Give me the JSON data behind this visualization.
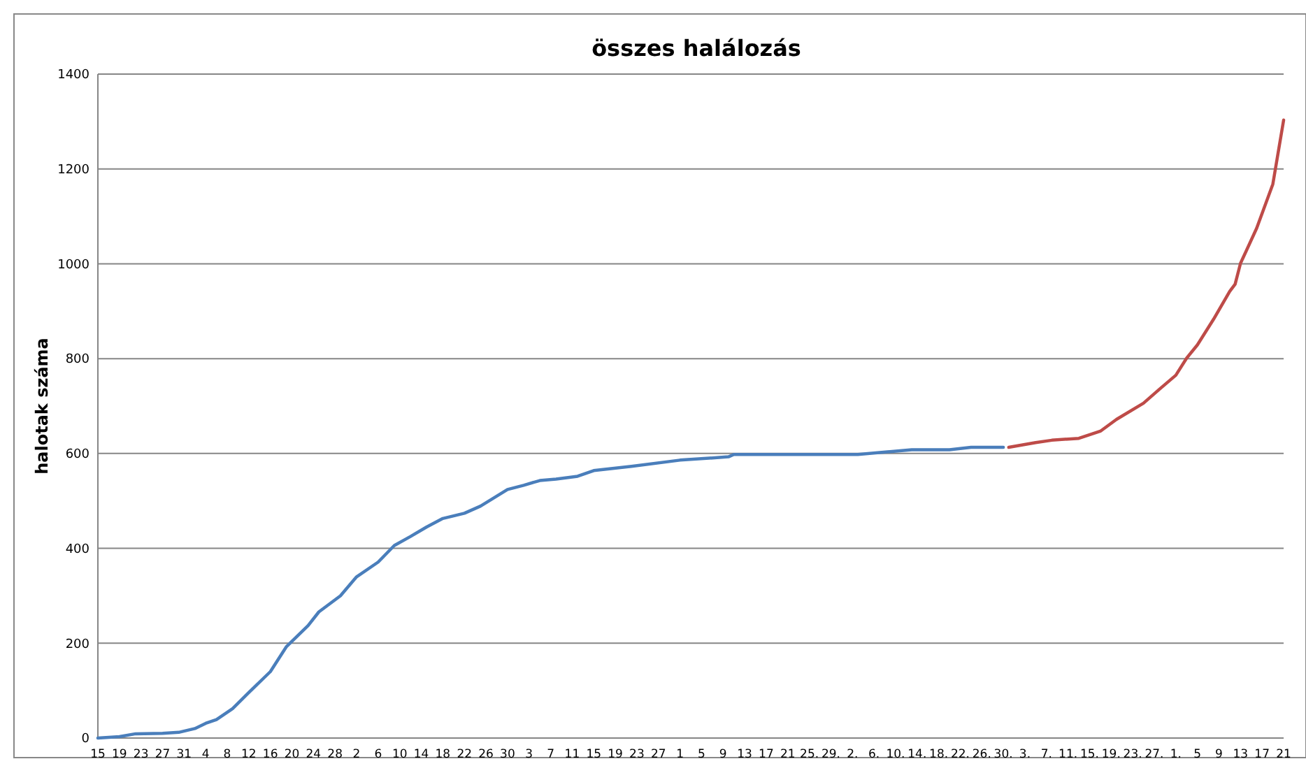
{
  "chart_data": {
    "type": "line",
    "title": "összes halálozás",
    "ylabel": "halotak száma",
    "ylim": [
      0,
      1400
    ],
    "yticks": [
      0,
      200,
      400,
      600,
      800,
      1000,
      1200,
      1400
    ],
    "grid": "y",
    "marker": "none",
    "line_style": "solid",
    "xlim": [
      "--03-15",
      "--10-21"
    ],
    "xticks": [
      {
        "value": "--03-15",
        "label": "15"
      },
      {
        "value": "--03-19",
        "label": "19"
      },
      {
        "value": "--03-23",
        "label": "23"
      },
      {
        "value": "--03-27",
        "label": "27"
      },
      {
        "value": "--03-31",
        "label": "31"
      },
      {
        "value": "--04-04",
        "label": "4"
      },
      {
        "value": "--04-08",
        "label": "8"
      },
      {
        "value": "--04-12",
        "label": "12"
      },
      {
        "value": "--04-16",
        "label": "16"
      },
      {
        "value": "--04-20",
        "label": "20"
      },
      {
        "value": "--04-24",
        "label": "24"
      },
      {
        "value": "--04-28",
        "label": "28"
      },
      {
        "value": "--05-02",
        "label": "2"
      },
      {
        "value": "--05-06",
        "label": "6"
      },
      {
        "value": "--05-10",
        "label": "10"
      },
      {
        "value": "--05-14",
        "label": "14"
      },
      {
        "value": "--05-18",
        "label": "18"
      },
      {
        "value": "--05-22",
        "label": "22"
      },
      {
        "value": "--05-26",
        "label": "26"
      },
      {
        "value": "--05-30",
        "label": "30"
      },
      {
        "value": "--06-03",
        "label": "3"
      },
      {
        "value": "--06-07",
        "label": "7"
      },
      {
        "value": "--06-11",
        "label": "11"
      },
      {
        "value": "--06-15",
        "label": "15"
      },
      {
        "value": "--06-19",
        "label": "19"
      },
      {
        "value": "--06-23",
        "label": "23"
      },
      {
        "value": "--06-27",
        "label": "27"
      },
      {
        "value": "--07-01",
        "label": "1"
      },
      {
        "value": "--07-05",
        "label": "5"
      },
      {
        "value": "--07-09",
        "label": "9"
      },
      {
        "value": "--07-13",
        "label": "13"
      },
      {
        "value": "--07-17",
        "label": "17"
      },
      {
        "value": "--07-21",
        "label": "21"
      },
      {
        "value": "--07-25",
        "label": "25."
      },
      {
        "value": "--07-29",
        "label": "29."
      },
      {
        "value": "--08-02",
        "label": "2."
      },
      {
        "value": "--08-06",
        "label": "6."
      },
      {
        "value": "--08-10",
        "label": "10."
      },
      {
        "value": "--08-14",
        "label": "14."
      },
      {
        "value": "--08-18",
        "label": "18."
      },
      {
        "value": "--08-22",
        "label": "22."
      },
      {
        "value": "--08-26",
        "label": "26."
      },
      {
        "value": "--08-30",
        "label": "30."
      },
      {
        "value": "--09-03",
        "label": "3."
      },
      {
        "value": "--09-07",
        "label": "7."
      },
      {
        "value": "--09-11",
        "label": "11."
      },
      {
        "value": "--09-15",
        "label": "15."
      },
      {
        "value": "--09-19",
        "label": "19."
      },
      {
        "value": "--09-23",
        "label": "23."
      },
      {
        "value": "--09-27",
        "label": "27."
      },
      {
        "value": "--10-01",
        "label": "1."
      },
      {
        "value": "--10-05",
        "label": "5"
      },
      {
        "value": "--10-09",
        "label": "9"
      },
      {
        "value": "--10-13",
        "label": "13"
      },
      {
        "value": "--10-17",
        "label": "17"
      },
      {
        "value": "--10-21",
        "label": "21"
      }
    ],
    "series": [
      {
        "color": "#4a7ebb",
        "x": [
          "--03-15",
          "--03-19",
          "--03-22",
          "--03-27",
          "--03-30",
          "--04-02",
          "--04-04",
          "--04-06",
          "--04-09",
          "--04-12",
          "--04-16",
          "--04-19",
          "--04-23",
          "--04-25",
          "--04-29",
          "--05-02",
          "--05-06",
          "--05-09",
          "--05-12",
          "--05-15",
          "--05-18",
          "--05-22",
          "--05-25",
          "--05-30",
          "--06-02",
          "--06-05",
          "--06-08",
          "--06-12",
          "--06-15",
          "--06-22",
          "--07-01",
          "--07-10",
          "--07-11",
          "--08-03",
          "--08-13",
          "--08-20",
          "--08-24",
          "--08-30"
        ],
        "values": [
          0,
          3,
          9,
          10,
          12,
          20,
          31,
          39,
          62,
          96,
          140,
          193,
          237,
          266,
          300,
          340,
          371,
          406,
          425,
          445,
          463,
          474,
          489,
          524,
          533,
          543,
          546,
          552,
          564,
          573,
          586,
          593,
          598,
          598,
          608,
          608,
          613,
          613
        ]
      },
      {
        "color": "#be4b48",
        "x": [
          "--08-31",
          "--09-05",
          "--09-08",
          "--09-13",
          "--09-17",
          "--09-20",
          "--09-25",
          "--09-28",
          "--10-01",
          "--10-03",
          "--10-05",
          "--10-08",
          "--10-11",
          "--10-12",
          "--10-13",
          "--10-16",
          "--10-19",
          "--10-21"
        ],
        "values": [
          613,
          623,
          628,
          632,
          647,
          672,
          706,
          736,
          765,
          801,
          829,
          883,
          942,
          957,
          1001,
          1075,
          1168,
          1303
        ]
      }
    ]
  }
}
